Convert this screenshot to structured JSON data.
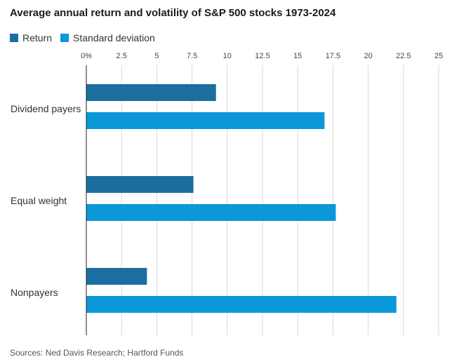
{
  "header": {
    "title": "Average annual return and volatility of S&P 500 stocks 1973-2024"
  },
  "footer": {
    "sources": "Sources: Ned Davis Research; Hartford Funds"
  },
  "colors": {
    "return": "#1a6fa0",
    "stdev": "#0a98d8",
    "grid": "#d9d9d9",
    "axis": "#222222"
  },
  "chart_data": {
    "type": "bar",
    "orientation": "horizontal",
    "title": "Average annual return and volatility of S&P 500 stocks 1973-2024",
    "categories": [
      "Dividend payers",
      "Equal weight",
      "Nonpayers"
    ],
    "series": [
      {
        "name": "Return",
        "color": "#1a6fa0",
        "values": [
          9.2,
          7.6,
          4.3
        ]
      },
      {
        "name": "Standard deviation",
        "color": "#0a98d8",
        "values": [
          16.9,
          17.7,
          22.0
        ]
      }
    ],
    "xlim": [
      0,
      25
    ],
    "xticks": [
      "0%",
      "2.5",
      "5",
      "7.5",
      "10",
      "12.5",
      "15",
      "17.5",
      "20",
      "22.5",
      "25"
    ],
    "tick_values": [
      0,
      2.5,
      5,
      7.5,
      10,
      12.5,
      15,
      17.5,
      20,
      22.5,
      25
    ],
    "legend_position": "top-left",
    "grid": true
  }
}
